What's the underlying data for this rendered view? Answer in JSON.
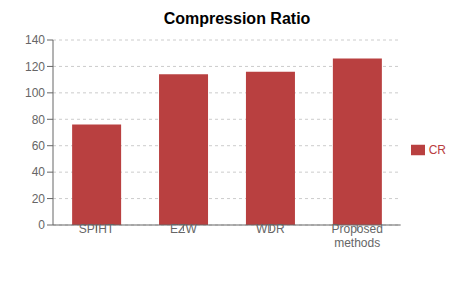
{
  "chart_data": {
    "type": "bar",
    "title": "Compression Ratio",
    "categories": [
      "SPIHT",
      "EZW",
      "WDR",
      "Proposed\nmethods"
    ],
    "series": [
      {
        "name": "CR",
        "color": "#b94040",
        "values": [
          76,
          114,
          116,
          126
        ]
      }
    ],
    "ylim": [
      0,
      140
    ],
    "yticks": [
      0,
      20,
      40,
      60,
      80,
      100,
      120,
      140
    ],
    "grid": true,
    "legend": "right"
  }
}
